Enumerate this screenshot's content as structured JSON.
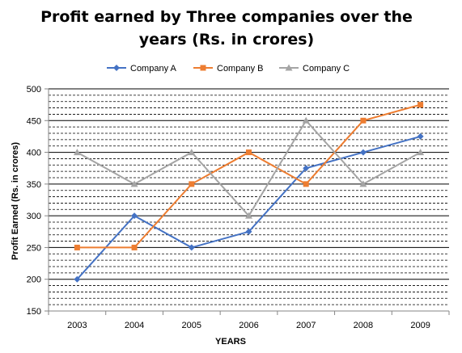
{
  "chart_data": {
    "type": "line",
    "title_line1": "Profit earned by Three companies over the",
    "title_line2": "years (Rs. in crores)",
    "xlabel": "YEARS",
    "ylabel": "Profit Earned (Rs. in crores)",
    "categories": [
      "2003",
      "2004",
      "2005",
      "2006",
      "2007",
      "2008",
      "2009"
    ],
    "ylim": [
      150,
      500
    ],
    "yticks": [
      150,
      200,
      250,
      300,
      350,
      400,
      450,
      500
    ],
    "minor_grid_step": 10,
    "legend_position": "top",
    "grid": true,
    "series": [
      {
        "name": "Company A",
        "color": "#4472C4",
        "marker": "diamond",
        "values": [
          200,
          300,
          250,
          275,
          375,
          400,
          425
        ]
      },
      {
        "name": "Company B",
        "color": "#ED7D31",
        "marker": "square",
        "values": [
          250,
          250,
          350,
          400,
          350,
          450,
          475
        ]
      },
      {
        "name": "Company C",
        "color": "#A5A5A5",
        "marker": "triangle",
        "values": [
          400,
          350,
          400,
          300,
          450,
          350,
          400
        ]
      }
    ]
  }
}
